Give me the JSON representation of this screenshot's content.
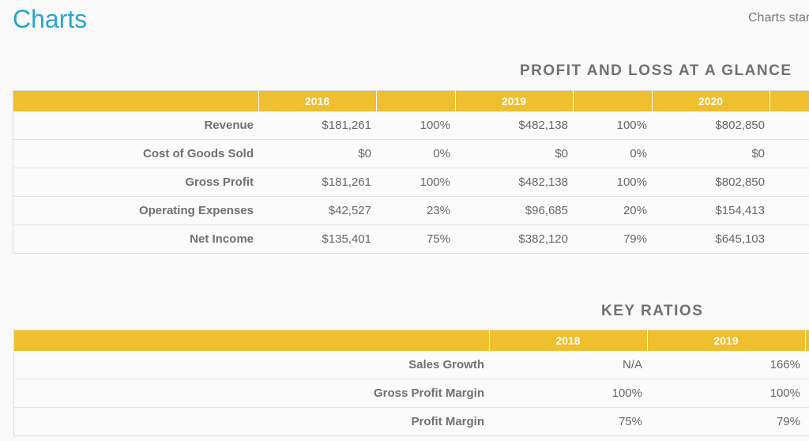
{
  "page": {
    "title": "Charts",
    "top_link": "Charts star"
  },
  "pl": {
    "heading": "PROFIT AND LOSS AT A GLANCE",
    "years": [
      "2018",
      "2019",
      "2020"
    ],
    "rows": [
      {
        "label": "Revenue",
        "cells": [
          "$181,261",
          "100%",
          "$482,138",
          "100%",
          "$802,850",
          ""
        ]
      },
      {
        "label": "Cost of Goods Sold",
        "cells": [
          "$0",
          "0%",
          "$0",
          "0%",
          "$0",
          ""
        ]
      },
      {
        "label": "Gross Profit",
        "cells": [
          "$181,261",
          "100%",
          "$482,138",
          "100%",
          "$802,850",
          ""
        ]
      },
      {
        "label": "Operating Expenses",
        "cells": [
          "$42,527",
          "23%",
          "$96,685",
          "20%",
          "$154,413",
          ""
        ]
      },
      {
        "label": "Net Income",
        "cells": [
          "$135,401",
          "75%",
          "$382,120",
          "79%",
          "$645,103",
          ""
        ]
      }
    ]
  },
  "ratios": {
    "heading": "KEY RATIOS",
    "years": [
      "2018",
      "2019"
    ],
    "rows": [
      {
        "label": "Sales Growth",
        "cells": [
          "N/A",
          "166%"
        ]
      },
      {
        "label": "Gross Profit Margin",
        "cells": [
          "100%",
          "100%"
        ]
      },
      {
        "label": "Profit Margin",
        "cells": [
          "75%",
          "79%"
        ]
      }
    ]
  },
  "colors": {
    "header": "#eebf2e",
    "title": "#2aa6c8"
  }
}
